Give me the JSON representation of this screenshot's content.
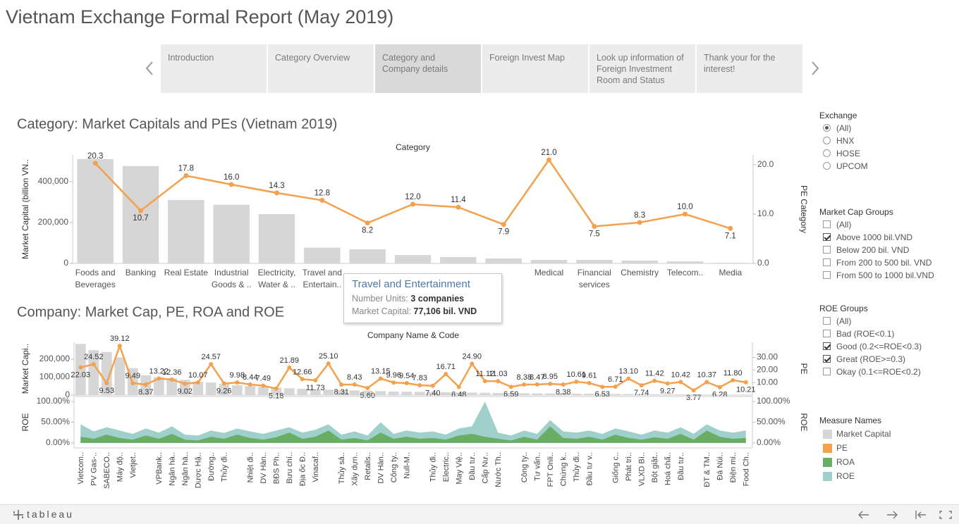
{
  "header": {
    "title": "Vietnam Exchange Formal Report (May 2019)"
  },
  "nav": {
    "tabs": [
      {
        "label": "Introduction",
        "active": false
      },
      {
        "label": "Category Overview",
        "active": false
      },
      {
        "label": "Category and\nCompany details",
        "active": true
      },
      {
        "label": "Foreign Invest Map",
        "active": false
      },
      {
        "label": "Look up information of Foreign Investment Room and Status",
        "active": false
      },
      {
        "label": "Thank your for the interest!",
        "active": false
      }
    ]
  },
  "chart_data": [
    {
      "type": "combo",
      "title": "Category: Market Capitals and PEs (Vietnam 2019)",
      "x_label": "Category",
      "y_label": "Market Capital (billion VN..",
      "y2_label": "PE Category",
      "categories": [
        "Foods and Beverages",
        "Banking",
        "Real Estate",
        "Industrial Goods & ..",
        "Electricity, Water & ..",
        "Travel and Entertain..",
        null,
        null,
        null,
        null,
        "Medical",
        "Financial services",
        "Chemistry",
        "Telecom..",
        "Media"
      ],
      "series": [
        {
          "mark": "bar",
          "color": "#d6d6d6",
          "values": [
            510000,
            476000,
            310000,
            286000,
            241000,
            77106,
            69000,
            41000,
            31000,
            24000,
            17000,
            17000,
            14000,
            10000,
            3000
          ]
        },
        {
          "mark": "line",
          "axis": "y2",
          "color": "#f4a04c",
          "values": [
            20.3,
            10.7,
            17.8,
            16.0,
            14.3,
            12.8,
            8.2,
            12.0,
            11.4,
            7.9,
            21.0,
            7.5,
            8.3,
            10.0,
            7.1
          ],
          "value_labels": [
            "20.3",
            "10.7",
            "17.8",
            "16.0",
            "14.3",
            "12.8",
            "8.2",
            "12.0",
            "11.4",
            "7.9",
            "21.0",
            "7.5",
            "8.3",
            "10.0",
            "7.1"
          ]
        }
      ],
      "ylim": [
        0,
        530000
      ],
      "yticks": [
        0,
        {
          "value": 200000,
          "label": "200,000"
        },
        {
          "value": 400000,
          "label": "400,000"
        }
      ],
      "y2lim": [
        0,
        22
      ],
      "y2ticks": [
        {
          "value": 0,
          "label": "0.0"
        },
        {
          "value": 10,
          "label": "10.0"
        },
        {
          "value": 20,
          "label": "20.0"
        }
      ]
    },
    {
      "type": "combo",
      "title": "Company: Market Cap, PE, ROA and ROE",
      "x_label": "Company Name & Code",
      "y_label": "Market Capi..",
      "y2_label": "PE",
      "categories": [
        "Vietcom..",
        "PV Gas-..",
        "SABECO..",
        "Máy độ..",
        "Vietjet..",
        null,
        "VPBank..",
        "Ngân hà..",
        "Ngân hà..",
        "Dược Hậ..",
        "Đường..",
        "Thủy đi..",
        null,
        "Nhiệt đi..",
        "DV Hàn..",
        "BĐS Ph..",
        "Bưu chí..",
        "Địa ốc Đ..",
        "Vinacaf..",
        null,
        "Thủy sả..",
        "Xây dựn..",
        "Retails..",
        "DV Hàn..",
        "Công ty..",
        "Null-M..",
        null,
        "Thủy đi..",
        "Electric..",
        "May Việ..",
        "Đầu tư..",
        "Cấp Nư..",
        "Nước Th..",
        null,
        "Công ty..",
        "Tư vấn..",
        "FPT Onli..",
        "Chứng k..",
        "Thủy đi..",
        "Đầu tư v..",
        null,
        "Giống c..",
        "Phát tri..",
        "VLXD Bì..",
        "Bột giặt..",
        "Hoá chấ..",
        "Đầu tư..",
        null,
        "ĐT & TM..",
        "Đá Núi..",
        "Điện mi..",
        "Food Ch.."
      ],
      "series": [
        {
          "name": "Market Capital",
          "mark": "bar",
          "color": "#d6d6d6",
          "values": [
            285000,
            250000,
            240000,
            210000,
            150000,
            110000,
            100000,
            95000,
            85000,
            75000,
            70000,
            62000,
            55000,
            50000,
            46000,
            42000,
            38000,
            35000,
            32000,
            30000,
            28000,
            26000,
            24000,
            22000,
            20000,
            19000,
            18000,
            17000,
            16000,
            15000,
            14000,
            13000,
            12000,
            11000,
            10000,
            9500,
            9000,
            8500,
            8000,
            7500,
            7000,
            6500,
            6000,
            5500,
            5000,
            4500,
            4000,
            3500,
            3000,
            2800,
            2600,
            2400
          ]
        },
        {
          "name": "PE",
          "mark": "line",
          "axis": "y2",
          "color": "#f4a04c",
          "values": [
            22.03,
            24.52,
            9.53,
            39.12,
            9.49,
            8.37,
            13.22,
            12.36,
            9.02,
            10.07,
            24.57,
            9.26,
            9.98,
            8.44,
            7.49,
            5.18,
            21.89,
            12.66,
            11.73,
            25.1,
            8.31,
            8.43,
            5.6,
            13.15,
            9.96,
            9.54,
            7.83,
            7.4,
            16.71,
            6.48,
            24.9,
            11.12,
            11.03,
            6.59,
            8.38,
            8.47,
            8.95,
            8.38,
            10.61,
            9.61,
            6.53,
            6.71,
            13.1,
            7.74,
            11.42,
            9.27,
            10.42,
            3.77,
            10.37,
            6.28,
            11.8,
            10.21
          ],
          "value_labels": [
            "22.03",
            "24.52",
            "9.53",
            "39.12",
            "9.49",
            "8.37",
            "13.22",
            "12.36",
            "9.02",
            "10.07",
            "24.57",
            "9.26",
            "9.98",
            "8.44",
            "7.49",
            "5.18",
            "21.89",
            "12.66",
            "11.73",
            "25.10",
            "8.31",
            "8.43",
            "5.60",
            "13.15",
            "9.96",
            "9.54",
            "7.83",
            "7.40",
            "16.71",
            "6.48",
            "24.90",
            "11.12",
            "11.03",
            "6.59",
            "8.38",
            "8.47",
            "8.95",
            "8.38",
            "10.61",
            "9.61",
            "6.53",
            "6.71",
            "13.10",
            "7.74",
            "11.42",
            "9.27",
            "10.42",
            "3.77",
            "10.37",
            "6.28",
            "11.80",
            "10.21"
          ]
        }
      ],
      "ylim": [
        0,
        294000
      ],
      "yticks": [
        0,
        {
          "value": 100000,
          "label": "100,000"
        },
        {
          "value": 200000,
          "label": "200,000"
        }
      ],
      "y2lim": [
        0,
        42
      ],
      "y2ticks": [
        {
          "value": 10,
          "label": "10.00"
        },
        {
          "value": 20,
          "label": "20.00"
        },
        {
          "value": 30,
          "label": "30.00"
        }
      ]
    },
    {
      "type": "area",
      "y_label": "ROE",
      "y2_label": "ROE",
      "series": [
        {
          "name": "ROE",
          "color": "#9fd0cb",
          "values": [
            45,
            28,
            38,
            30,
            22,
            35,
            25,
            40,
            20,
            18,
            30,
            24,
            35,
            28,
            22,
            30,
            38,
            25,
            32,
            45,
            20,
            28,
            18,
            50,
            22,
            30,
            25,
            28,
            20,
            35,
            40,
            100,
            25,
            18,
            30,
            22,
            55,
            28,
            25,
            30,
            22,
            35,
            28,
            20,
            30,
            25,
            38,
            22,
            45,
            30,
            25,
            30
          ]
        },
        {
          "name": "ROA",
          "color": "#6aad65",
          "values": [
            15,
            10,
            20,
            12,
            8,
            18,
            10,
            22,
            8,
            6,
            15,
            10,
            20,
            12,
            8,
            14,
            25,
            10,
            15,
            30,
            8,
            12,
            6,
            25,
            10,
            15,
            10,
            12,
            8,
            18,
            22,
            15,
            10,
            6,
            15,
            8,
            40,
            12,
            10,
            15,
            8,
            20,
            12,
            8,
            14,
            10,
            22,
            8,
            30,
            15,
            10,
            12
          ]
        }
      ],
      "ylim": [
        -12,
        112
      ],
      "yticks": [
        {
          "value": 0,
          "label": "0.00%"
        },
        {
          "value": 50,
          "label": "50.00%"
        },
        {
          "value": 100,
          "label": "100.00%"
        }
      ]
    }
  ],
  "tooltip": {
    "title": "Travel and Entertainment",
    "lines": [
      {
        "label": "Number Units:",
        "value": "3 companies"
      },
      {
        "label": "Market Capital:",
        "value": "77,106 bil. VND"
      }
    ]
  },
  "filters": [
    {
      "title": "Exchange",
      "control": "radio",
      "options": [
        {
          "label": "(All)",
          "checked": true
        },
        {
          "label": "HNX",
          "checked": false
        },
        {
          "label": "HOSE",
          "checked": false
        },
        {
          "label": "UPCOM",
          "checked": false
        }
      ]
    },
    {
      "title": "Market Cap Groups",
      "control": "checkbox",
      "options": [
        {
          "label": "(All)",
          "checked": false
        },
        {
          "label": "Above 1000 bil.VND",
          "checked": true
        },
        {
          "label": "Below 200 bil. VND",
          "checked": false
        },
        {
          "label": "From 200 to 500 bil. VND",
          "checked": false
        },
        {
          "label": "From 500 to 1000 bil.VND",
          "checked": false
        }
      ]
    },
    {
      "title": "ROE Groups",
      "control": "checkbox",
      "options": [
        {
          "label": "(All)",
          "checked": false
        },
        {
          "label": "Bad (ROE<0.1)",
          "checked": false
        },
        {
          "label": "Good (0.2<=ROE<0.3)",
          "checked": true
        },
        {
          "label": "Great (ROE>=0.3)",
          "checked": true
        },
        {
          "label": "Okay (0.1<=ROE<0.2)",
          "checked": false
        }
      ]
    }
  ],
  "legend": {
    "title": "Measure Names"
  },
  "footer": {
    "brand": "tableau"
  }
}
